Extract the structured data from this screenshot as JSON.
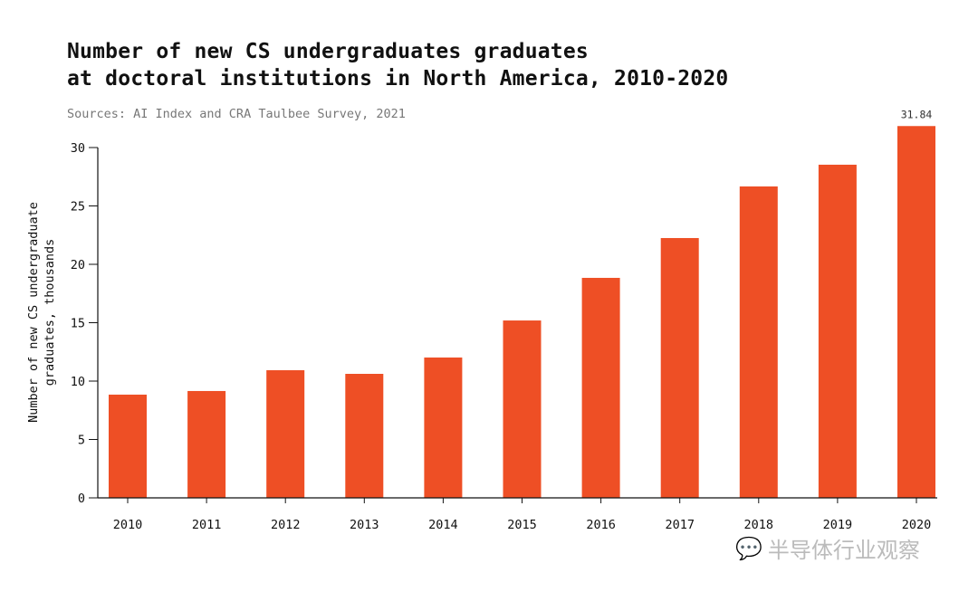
{
  "chart_data": {
    "type": "bar",
    "title_line1": "Number of new CS undergraduates graduates",
    "title_line2": "at doctoral institutions in North America, 2010-2020",
    "subtitle": "Sources: AI Index and CRA Taulbee Survey, 2021",
    "ylabel_line1": "Number of new CS undergraduate",
    "ylabel_line2": "graduates, thousands",
    "xlabel": "",
    "categories": [
      "2010",
      "2011",
      "2012",
      "2013",
      "2014",
      "2015",
      "2016",
      "2017",
      "2018",
      "2019",
      "2020"
    ],
    "values": [
      8.84,
      9.15,
      10.93,
      10.62,
      12.02,
      15.19,
      18.84,
      22.25,
      26.67,
      28.53,
      31.84
    ],
    "data_labels": {
      "10": "31.84"
    },
    "yticks": [
      0,
      5,
      10,
      15,
      20,
      25,
      30
    ],
    "ylim": [
      0,
      30
    ],
    "grid": false,
    "bar_color": "#ee4f25"
  },
  "watermark": "半导体行业观察"
}
